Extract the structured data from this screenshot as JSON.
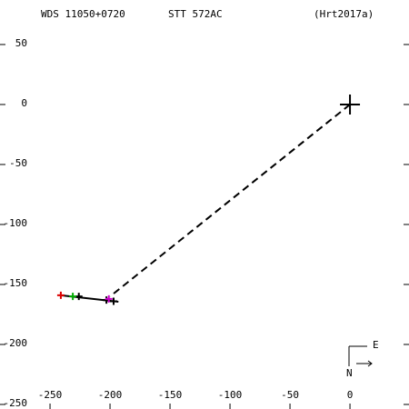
{
  "chart_data": {
    "type": "scatter",
    "title": "WDS 11050+0720",
    "subtitle": "STT 572AC",
    "reference": "(Hrt2017a)",
    "compass": {
      "north": "N",
      "east": "E"
    },
    "xlim": [
      -291.7,
      49.2
    ],
    "ylim": [
      -253.8,
      87.1
    ],
    "xticks": [
      -250,
      -200,
      -150,
      -100,
      -50,
      0
    ],
    "yticks": [
      50,
      0,
      -50,
      -100,
      -150,
      -200,
      -250
    ],
    "series": [
      {
        "style": "dash",
        "color": "#000000",
        "x": [
          0,
          -200
        ],
        "y": [
          0,
          -160
        ]
      },
      {
        "style": "line",
        "color": "#000000",
        "x": [
          -242,
          -193
        ],
        "y": [
          -158.9,
          -164.4
        ]
      },
      {
        "style": "plus-large",
        "color": "#000000",
        "x": [
          0
        ],
        "y": [
          0
        ]
      },
      {
        "style": "plus",
        "color": "#000000",
        "x": [
          -226,
          -203,
          -197
        ],
        "y": [
          -160,
          -163,
          -164
        ]
      },
      {
        "style": "plus",
        "color": "#dd0000",
        "x": [
          -241
        ],
        "y": [
          -159
        ]
      },
      {
        "style": "plus",
        "color": "#00aa00",
        "x": [
          -231
        ],
        "y": [
          -160
        ]
      },
      {
        "style": "plus",
        "color": "#cc00cc",
        "x": [
          -201
        ],
        "y": [
          -162
        ]
      }
    ]
  }
}
